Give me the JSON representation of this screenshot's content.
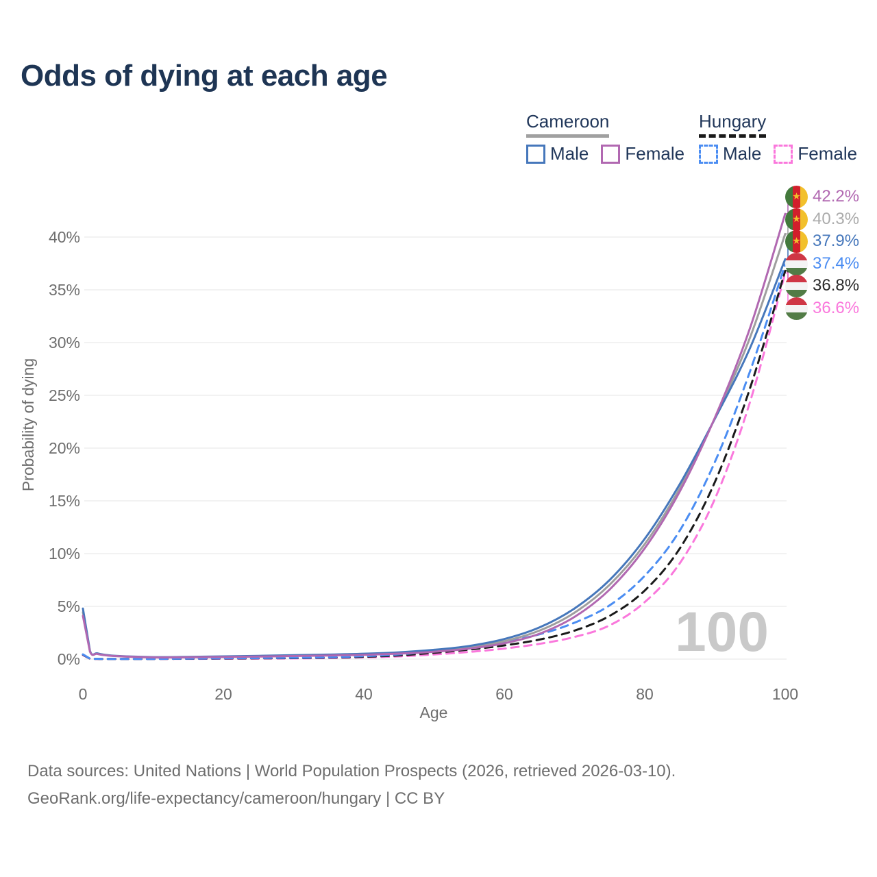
{
  "title": "Odds of dying at each age",
  "watermark": "100",
  "legend": {
    "groups": [
      {
        "name": "Cameroon",
        "line_style": "solid",
        "underline_color": "#a0a0a0",
        "items": [
          {
            "label": "Male"
          },
          {
            "label": "Female"
          }
        ]
      },
      {
        "name": "Hungary",
        "line_style": "dashed",
        "underline_color": "#1a1a1a",
        "items": [
          {
            "label": "Male"
          },
          {
            "label": "Female"
          }
        ]
      }
    ]
  },
  "footer": {
    "line1": "Data sources: United Nations | World Population Prospects (2026, retrieved 2026-03-10).",
    "line2": "GeoRank.org/life-expectancy/cameroon/hungary | CC BY"
  },
  "chart_data": {
    "type": "line",
    "title": "Odds of dying at each age",
    "xlabel": "Age",
    "ylabel": "Probability of dying",
    "xlim": [
      0,
      100
    ],
    "ylim": [
      0,
      44
    ],
    "grid": "horizontal",
    "legend_position": "top-right",
    "x_ticks": [
      0,
      20,
      40,
      60,
      80,
      100
    ],
    "y_ticks": [
      {
        "value": 0,
        "label": "0%"
      },
      {
        "value": 5,
        "label": "5%"
      },
      {
        "value": 10,
        "label": "10%"
      },
      {
        "value": 15,
        "label": "15%"
      },
      {
        "value": 20,
        "label": "20%"
      },
      {
        "value": 25,
        "label": "25%"
      },
      {
        "value": 30,
        "label": "30%"
      },
      {
        "value": 35,
        "label": "35%"
      },
      {
        "value": 40,
        "label": "40%"
      }
    ],
    "series": [
      {
        "id": "cameroon-male",
        "country": "Cameroon",
        "sex": "Male",
        "color": "#4677bb",
        "label_color": "#4677bb",
        "dash": false,
        "z": 5,
        "flag": "cameroon",
        "end_label": "37.9%",
        "end_value": 37.9,
        "points": [
          [
            0,
            4.8
          ],
          [
            1,
            0.8
          ],
          [
            2,
            0.55
          ],
          [
            3,
            0.42
          ],
          [
            5,
            0.3
          ],
          [
            10,
            0.19
          ],
          [
            15,
            0.21
          ],
          [
            20,
            0.26
          ],
          [
            25,
            0.31
          ],
          [
            30,
            0.37
          ],
          [
            35,
            0.43
          ],
          [
            40,
            0.51
          ],
          [
            45,
            0.64
          ],
          [
            50,
            0.88
          ],
          [
            55,
            1.25
          ],
          [
            60,
            1.9
          ],
          [
            65,
            3.0
          ],
          [
            70,
            4.8
          ],
          [
            75,
            7.5
          ],
          [
            80,
            11.4
          ],
          [
            85,
            16.6
          ],
          [
            90,
            22.8
          ],
          [
            95,
            29.5
          ],
          [
            100,
            37.9
          ]
        ]
      },
      {
        "id": "cameroon-female",
        "country": "Cameroon",
        "sex": "Female",
        "color": "#b168b1",
        "label_color": "#b168b1",
        "dash": false,
        "z": 6,
        "flag": "cameroon",
        "end_label": "42.2%",
        "end_value": 42.2,
        "points": [
          [
            0,
            4.1
          ],
          [
            1,
            0.72
          ],
          [
            2,
            0.5
          ],
          [
            3,
            0.38
          ],
          [
            5,
            0.27
          ],
          [
            10,
            0.16
          ],
          [
            15,
            0.17
          ],
          [
            20,
            0.2
          ],
          [
            25,
            0.24
          ],
          [
            30,
            0.29
          ],
          [
            35,
            0.34
          ],
          [
            40,
            0.41
          ],
          [
            45,
            0.52
          ],
          [
            50,
            0.7
          ],
          [
            55,
            1.0
          ],
          [
            60,
            1.5
          ],
          [
            65,
            2.4
          ],
          [
            70,
            4.0
          ],
          [
            75,
            6.6
          ],
          [
            80,
            10.5
          ],
          [
            85,
            15.9
          ],
          [
            90,
            22.9
          ],
          [
            95,
            31.4
          ],
          [
            100,
            42.2
          ]
        ]
      },
      {
        "id": "cameroon-both-sexes",
        "country": "Cameroon",
        "sex": "Both sexes",
        "color": "#9e9e9e",
        "label_color": "#ababab",
        "dash": false,
        "z": 4,
        "flag": "cameroon",
        "end_label": "40.3%",
        "end_value": 40.3,
        "points": [
          [
            0,
            4.45
          ],
          [
            1,
            0.76
          ],
          [
            2,
            0.52
          ],
          [
            3,
            0.4
          ],
          [
            5,
            0.28
          ],
          [
            10,
            0.17
          ],
          [
            15,
            0.19
          ],
          [
            20,
            0.23
          ],
          [
            25,
            0.27
          ],
          [
            30,
            0.33
          ],
          [
            35,
            0.39
          ],
          [
            40,
            0.46
          ],
          [
            45,
            0.58
          ],
          [
            50,
            0.79
          ],
          [
            55,
            1.12
          ],
          [
            60,
            1.7
          ],
          [
            65,
            2.7
          ],
          [
            70,
            4.4
          ],
          [
            75,
            7.05
          ],
          [
            80,
            10.9
          ],
          [
            85,
            16.2
          ],
          [
            90,
            22.85
          ],
          [
            95,
            30.5
          ],
          [
            100,
            40.3
          ]
        ]
      },
      {
        "id": "hungary-male",
        "country": "Hungary",
        "sex": "Male",
        "color": "#4b8df2",
        "label_color": "#4b8df2",
        "dash": true,
        "z": 3,
        "flag": "hungary",
        "end_label": "37.4%",
        "end_value": 37.4,
        "points": [
          [
            0,
            0.45
          ],
          [
            1,
            0.05
          ],
          [
            2,
            0.03
          ],
          [
            3,
            0.02
          ],
          [
            5,
            0.02
          ],
          [
            10,
            0.02
          ],
          [
            15,
            0.05
          ],
          [
            20,
            0.08
          ],
          [
            25,
            0.1
          ],
          [
            30,
            0.13
          ],
          [
            35,
            0.18
          ],
          [
            40,
            0.28
          ],
          [
            45,
            0.45
          ],
          [
            50,
            0.75
          ],
          [
            55,
            1.15
          ],
          [
            60,
            1.65
          ],
          [
            65,
            2.35
          ],
          [
            70,
            3.45
          ],
          [
            75,
            5.1
          ],
          [
            80,
            7.9
          ],
          [
            85,
            12.2
          ],
          [
            90,
            18.7
          ],
          [
            95,
            27.3
          ],
          [
            100,
            37.4
          ]
        ]
      },
      {
        "id": "hungary-female",
        "country": "Hungary",
        "sex": "Female",
        "color": "#fa78dc",
        "label_color": "#fa78dc",
        "dash": true,
        "z": 1,
        "flag": "hungary",
        "end_label": "36.6%",
        "end_value": 36.6,
        "points": [
          [
            0,
            0.38
          ],
          [
            1,
            0.04
          ],
          [
            2,
            0.02
          ],
          [
            3,
            0.015
          ],
          [
            5,
            0.015
          ],
          [
            10,
            0.015
          ],
          [
            15,
            0.025
          ],
          [
            20,
            0.035
          ],
          [
            25,
            0.05
          ],
          [
            30,
            0.07
          ],
          [
            35,
            0.1
          ],
          [
            40,
            0.16
          ],
          [
            45,
            0.26
          ],
          [
            50,
            0.44
          ],
          [
            55,
            0.68
          ],
          [
            60,
            1.0
          ],
          [
            65,
            1.45
          ],
          [
            70,
            2.1
          ],
          [
            75,
            3.2
          ],
          [
            80,
            5.4
          ],
          [
            85,
            9.1
          ],
          [
            90,
            15.2
          ],
          [
            95,
            24.4
          ],
          [
            100,
            36.6
          ]
        ]
      },
      {
        "id": "hungary-both-sexes",
        "country": "Hungary",
        "sex": "Both sexes",
        "color": "#1a1a1a",
        "label_color": "#2b2b2b",
        "dash": true,
        "z": 2,
        "flag": "hungary",
        "end_label": "36.8%",
        "end_value": 36.8,
        "points": [
          [
            0,
            0.42
          ],
          [
            1,
            0.045
          ],
          [
            2,
            0.025
          ],
          [
            3,
            0.018
          ],
          [
            5,
            0.018
          ],
          [
            10,
            0.018
          ],
          [
            15,
            0.038
          ],
          [
            20,
            0.058
          ],
          [
            25,
            0.075
          ],
          [
            30,
            0.1
          ],
          [
            35,
            0.14
          ],
          [
            40,
            0.22
          ],
          [
            45,
            0.35
          ],
          [
            50,
            0.6
          ],
          [
            55,
            0.9
          ],
          [
            60,
            1.3
          ],
          [
            65,
            1.85
          ],
          [
            70,
            2.7
          ],
          [
            75,
            4.1
          ],
          [
            80,
            6.5
          ],
          [
            85,
            10.5
          ],
          [
            90,
            16.8
          ],
          [
            95,
            25.7
          ],
          [
            100,
            36.8
          ]
        ]
      }
    ]
  }
}
